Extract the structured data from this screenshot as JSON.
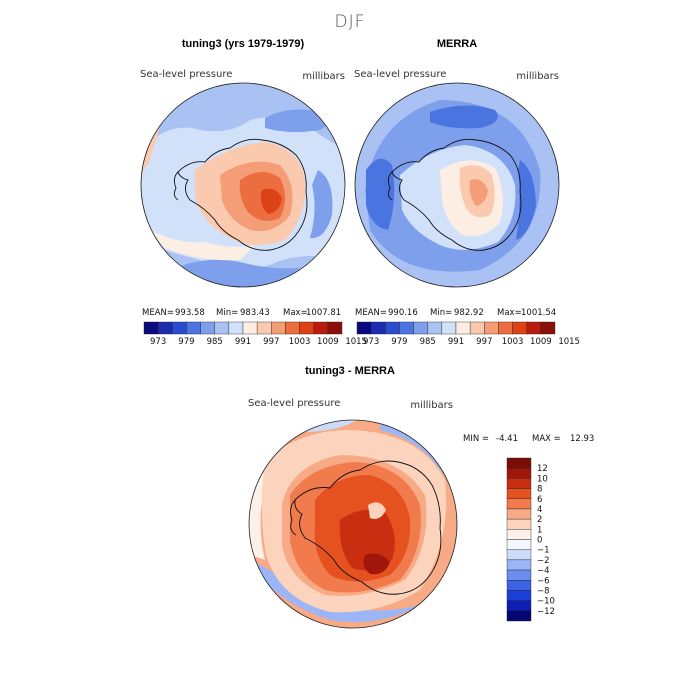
{
  "figure": {
    "title": "DJF"
  },
  "colors": {
    "abs_levels": [
      "#0a0a7d",
      "#1d2bb0",
      "#2a4ccf",
      "#4a74e0",
      "#7d9fec",
      "#a9c1f3",
      "#d2e1fa",
      "#fdeee4",
      "#fbc9ae",
      "#f59d77",
      "#ec6d40",
      "#dd4116",
      "#b81c0c",
      "#8a0f08"
    ],
    "diff_levels": [
      "#050573",
      "#0c1eb3",
      "#1b3fd6",
      "#3b63e6",
      "#6b8df0",
      "#9bb5f6",
      "#cbdcfb",
      "#f4f6fd",
      "#fdf0e8",
      "#fcd3bd",
      "#f7aa85",
      "#f17b4d",
      "#e5511f",
      "#ca2e10",
      "#a1160b",
      "#7a0d08"
    ]
  },
  "chart_data": [
    {
      "type": "heatmap",
      "panel": "left",
      "title": "tuning3 (yrs 1979-1979)",
      "left_label": "Sea-level pressure",
      "right_label": "millibars",
      "stats": {
        "mean_label": "MEAN=",
        "mean": "993.58",
        "min_label": "Min=",
        "min": "983.43",
        "max_label": "Max=",
        "max": "1007.81"
      },
      "colorbar": {
        "orientation": "horizontal",
        "levels": [
          973,
          976,
          979,
          982,
          985,
          988,
          991,
          994,
          997,
          1000,
          1003,
          1006,
          1009,
          1012,
          1015
        ],
        "tick_labels": [
          "973",
          "979",
          "985",
          "991",
          "997",
          "1003",
          "1009",
          "1015"
        ]
      }
    },
    {
      "type": "heatmap",
      "panel": "right",
      "title": "MERRA",
      "left_label": "Sea-level pressure",
      "right_label": "millibars",
      "stats": {
        "mean_label": "MEAN=",
        "mean": "990.16",
        "min_label": "Min=",
        "min": "982.92",
        "max_label": "Max=",
        "max": "1001.54"
      },
      "colorbar": {
        "orientation": "horizontal",
        "levels": [
          973,
          976,
          979,
          982,
          985,
          988,
          991,
          994,
          997,
          1000,
          1003,
          1006,
          1009,
          1012,
          1015
        ],
        "tick_labels": [
          "973",
          "979",
          "985",
          "991",
          "997",
          "1003",
          "1009",
          "1015"
        ]
      }
    },
    {
      "type": "heatmap",
      "panel": "difference",
      "title": "tuning3 - MERRA",
      "left_label": "Sea-level pressure",
      "right_label": "millibars",
      "stats": {
        "min_label": "MIN =",
        "min": "-4.41",
        "max_label": "MAX =",
        "max": "12.93"
      },
      "colorbar": {
        "orientation": "vertical",
        "tick_labels": [
          "12",
          "10",
          "8",
          "6",
          "4",
          "2",
          "1",
          "0",
          "−1",
          "−2",
          "−4",
          "−6",
          "−8",
          "−10",
          "−12"
        ]
      }
    }
  ]
}
